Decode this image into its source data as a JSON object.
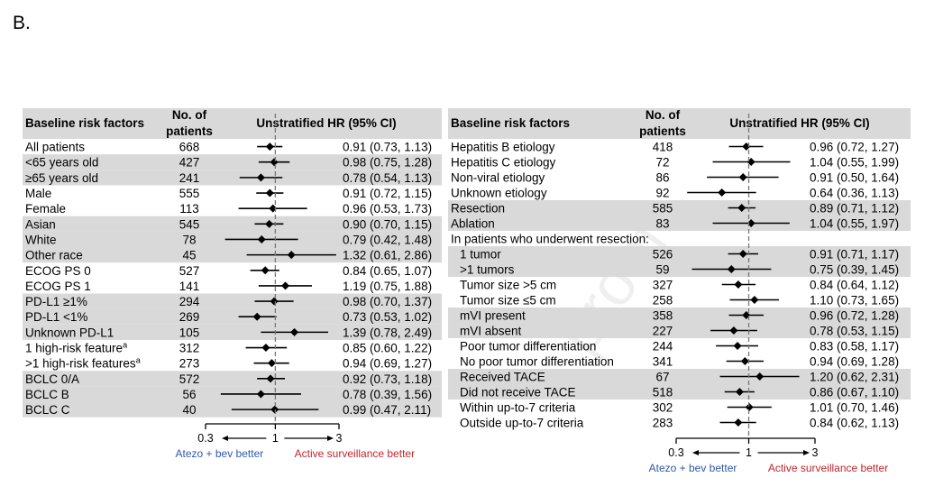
{
  "panel_letter": "B.",
  "watermark": "proof",
  "chart_data": [
    {
      "type": "forest",
      "columns": {
        "factor": "Baseline risk factors",
        "n": "No. of patients",
        "hr": "Unstratified HR (95% CI)"
      },
      "x_scale": "log",
      "xlim": [
        0.3,
        3
      ],
      "x_ticks": [
        "0.3",
        "1",
        "3"
      ],
      "left_label": "Atezo + bev better",
      "right_label": "Active surveillance better",
      "left_color": "#2e5aa8",
      "right_color": "#c0262d",
      "rows": [
        {
          "label": "All patients",
          "n": "668",
          "hr": 0.91,
          "lo": 0.73,
          "hi": 1.13,
          "text": "0.91 (0.73, 1.13)",
          "shade": false
        },
        {
          "label": "<65 years old",
          "n": "427",
          "hr": 0.98,
          "lo": 0.75,
          "hi": 1.28,
          "text": "0.98 (0.75, 1.28)",
          "shade": true
        },
        {
          "label": "≥65 years old",
          "n": "241",
          "hr": 0.78,
          "lo": 0.54,
          "hi": 1.13,
          "text": "0.78 (0.54, 1.13)",
          "shade": true
        },
        {
          "label": "Male",
          "n": "555",
          "hr": 0.91,
          "lo": 0.72,
          "hi": 1.15,
          "text": "0.91 (0.72, 1.15)",
          "shade": false
        },
        {
          "label": "Female",
          "n": "113",
          "hr": 0.96,
          "lo": 0.53,
          "hi": 1.73,
          "text": "0.96 (0.53, 1.73)",
          "shade": false
        },
        {
          "label": "Asian",
          "n": "545",
          "hr": 0.9,
          "lo": 0.7,
          "hi": 1.15,
          "text": "0.90 (0.70, 1.15)",
          "shade": true
        },
        {
          "label": "White",
          "n": "78",
          "hr": 0.79,
          "lo": 0.42,
          "hi": 1.48,
          "text": "0.79 (0.42, 1.48)",
          "shade": true
        },
        {
          "label": "Other race",
          "n": "45",
          "hr": 1.32,
          "lo": 0.61,
          "hi": 2.86,
          "text": "1.32 (0.61, 2.86)",
          "shade": true
        },
        {
          "label": "ECOG PS 0",
          "n": "527",
          "hr": 0.84,
          "lo": 0.65,
          "hi": 1.07,
          "text": "0.84 (0.65, 1.07)",
          "shade": false
        },
        {
          "label": "ECOG PS 1",
          "n": "141",
          "hr": 1.19,
          "lo": 0.75,
          "hi": 1.88,
          "text": "1.19 (0.75, 1.88)",
          "shade": false
        },
        {
          "label": "PD-L1 ≥1%",
          "n": "294",
          "hr": 0.98,
          "lo": 0.7,
          "hi": 1.37,
          "text": "0.98 (0.70, 1.37)",
          "shade": true
        },
        {
          "label": "PD-L1 <1%",
          "n": "269",
          "hr": 0.73,
          "lo": 0.53,
          "hi": 1.02,
          "text": "0.73 (0.53, 1.02)",
          "shade": true
        },
        {
          "label": "Unknown PD-L1",
          "n": "105",
          "hr": 1.39,
          "lo": 0.78,
          "hi": 2.49,
          "text": "1.39 (0.78, 2.49)",
          "shade": true
        },
        {
          "label": "1 high-risk feature",
          "sup": "a",
          "n": "312",
          "hr": 0.85,
          "lo": 0.6,
          "hi": 1.22,
          "text": "0.85 (0.60, 1.22)",
          "shade": false
        },
        {
          "label": ">1 high-risk features",
          "sup": "a",
          "n": "273",
          "hr": 0.94,
          "lo": 0.69,
          "hi": 1.27,
          "text": "0.94 (0.69, 1.27)",
          "shade": false
        },
        {
          "label": "BCLC 0/A",
          "n": "572",
          "hr": 0.92,
          "lo": 0.73,
          "hi": 1.18,
          "text": "0.92 (0.73, 1.18)",
          "shade": true
        },
        {
          "label": "BCLC B",
          "n": "56",
          "hr": 0.78,
          "lo": 0.39,
          "hi": 1.56,
          "text": "0.78 (0.39, 1.56)",
          "shade": true
        },
        {
          "label": "BCLC C",
          "n": "40",
          "hr": 0.99,
          "lo": 0.47,
          "hi": 2.11,
          "text": "0.99 (0.47, 2.11)",
          "shade": true
        }
      ]
    },
    {
      "type": "forest",
      "columns": {
        "factor": "Baseline risk factors",
        "n": "No. of patients",
        "hr": "Unstratified HR (95% CI)"
      },
      "x_scale": "log",
      "xlim": [
        0.3,
        3
      ],
      "x_ticks": [
        "0.3",
        "1",
        "3"
      ],
      "left_label": "Atezo + bev better",
      "right_label": "Active surveillance better",
      "left_color": "#2e5aa8",
      "right_color": "#c0262d",
      "rows": [
        {
          "label": "Hepatitis B etiology",
          "n": "418",
          "hr": 0.96,
          "lo": 0.72,
          "hi": 1.27,
          "text": "0.96 (0.72, 1.27)",
          "shade": false
        },
        {
          "label": "Hepatitis C etiology",
          "n": "72",
          "hr": 1.04,
          "lo": 0.55,
          "hi": 1.99,
          "text": "1.04 (0.55, 1.99)",
          "shade": false
        },
        {
          "label": "Non-viral etiology",
          "n": "86",
          "hr": 0.91,
          "lo": 0.5,
          "hi": 1.64,
          "text": "0.91 (0.50, 1.64)",
          "shade": false
        },
        {
          "label": "Unknown etiology",
          "n": "92",
          "hr": 0.64,
          "lo": 0.36,
          "hi": 1.13,
          "text": "0.64 (0.36, 1.13)",
          "shade": false
        },
        {
          "label": "Resection",
          "n": "585",
          "hr": 0.89,
          "lo": 0.71,
          "hi": 1.12,
          "text": "0.89 (0.71, 1.12)",
          "shade": true
        },
        {
          "label": "Ablation",
          "n": "83",
          "hr": 1.04,
          "lo": 0.55,
          "hi": 1.97,
          "text": "1.04 (0.55, 1.97)",
          "shade": true
        },
        {
          "label": "In patients who underwent resection:",
          "n": "",
          "text": "",
          "shade": false,
          "header": true
        },
        {
          "label": "1 tumor",
          "n": "526",
          "hr": 0.91,
          "lo": 0.71,
          "hi": 1.17,
          "text": "0.91 (0.71, 1.17)",
          "shade": true,
          "indent": true
        },
        {
          "label": ">1 tumors",
          "n": "59",
          "hr": 0.75,
          "lo": 0.39,
          "hi": 1.45,
          "text": "0.75 (0.39, 1.45)",
          "shade": true,
          "indent": true
        },
        {
          "label": "Tumor size >5 cm",
          "n": "327",
          "hr": 0.84,
          "lo": 0.64,
          "hi": 1.12,
          "text": "0.84 (0.64, 1.12)",
          "shade": false,
          "indent": true
        },
        {
          "label": "Tumor size ≤5 cm",
          "n": "258",
          "hr": 1.1,
          "lo": 0.73,
          "hi": 1.65,
          "text": "1.10 (0.73, 1.65)",
          "shade": false,
          "indent": true
        },
        {
          "label": "mVI present",
          "n": "358",
          "hr": 0.96,
          "lo": 0.72,
          "hi": 1.28,
          "text": "0.96 (0.72, 1.28)",
          "shade": true,
          "indent": true
        },
        {
          "label": "mVI absent",
          "n": "227",
          "hr": 0.78,
          "lo": 0.53,
          "hi": 1.15,
          "text": "0.78 (0.53, 1.15)",
          "shade": true,
          "indent": true
        },
        {
          "label": "Poor tumor differentiation",
          "n": "244",
          "hr": 0.83,
          "lo": 0.58,
          "hi": 1.17,
          "text": "0.83 (0.58, 1.17)",
          "shade": false,
          "indent": true
        },
        {
          "label": "No poor tumor differentiation",
          "n": "341",
          "hr": 0.94,
          "lo": 0.69,
          "hi": 1.28,
          "text": "0.94 (0.69, 1.28)",
          "shade": false,
          "indent": true
        },
        {
          "label": "Received TACE",
          "n": "67",
          "hr": 1.2,
          "lo": 0.62,
          "hi": 2.31,
          "text": "1.20 (0.62, 2.31)",
          "shade": true,
          "indent": true
        },
        {
          "label": "Did not receive TACE",
          "n": "518",
          "hr": 0.86,
          "lo": 0.67,
          "hi": 1.1,
          "text": "0.86 (0.67, 1.10)",
          "shade": true,
          "indent": true
        },
        {
          "label": "Within up-to-7 criteria",
          "n": "302",
          "hr": 1.01,
          "lo": 0.7,
          "hi": 1.46,
          "text": "1.01 (0.70, 1.46)",
          "shade": false,
          "indent": true
        },
        {
          "label": "Outside up-to-7 criteria",
          "n": "283",
          "hr": 0.84,
          "lo": 0.62,
          "hi": 1.13,
          "text": "0.84 (0.62, 1.13)",
          "shade": false,
          "indent": true
        }
      ]
    }
  ]
}
